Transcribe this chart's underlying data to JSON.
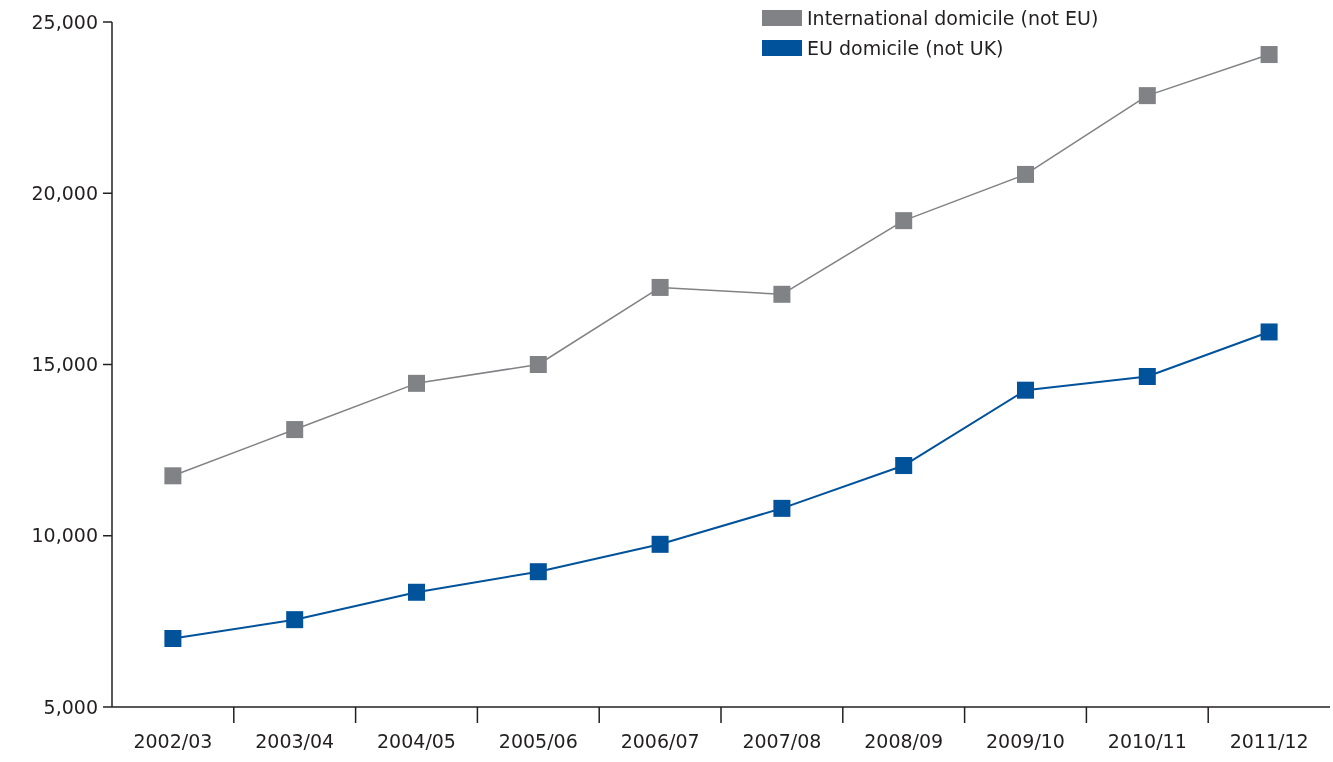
{
  "chart_data": {
    "type": "line",
    "categories": [
      "2002/03",
      "2003/04",
      "2004/05",
      "2005/06",
      "2006/07",
      "2007/08",
      "2008/09",
      "2009/10",
      "2010/11",
      "2011/12"
    ],
    "series": [
      {
        "name": "International domicile (not EU)",
        "color": "#808285",
        "values": [
          11750,
          13100,
          14450,
          15000,
          17250,
          17050,
          19200,
          20550,
          22850,
          24050
        ]
      },
      {
        "name": "EU domicile (not UK)",
        "color": "#00529b",
        "values": [
          7000,
          7550,
          8350,
          8950,
          9750,
          10800,
          12050,
          14250,
          14650,
          15950
        ]
      }
    ],
    "ylim": [
      5000,
      25000
    ],
    "yticks": [
      {
        "value": 5000,
        "label": "5,000"
      },
      {
        "value": 10000,
        "label": "10,000"
      },
      {
        "value": 15000,
        "label": "15,000"
      },
      {
        "value": 20000,
        "label": "20,000"
      },
      {
        "value": 25000,
        "label": "25,000"
      }
    ],
    "grid": false,
    "legend": "top right",
    "marker": "square",
    "line_style": "solid"
  }
}
